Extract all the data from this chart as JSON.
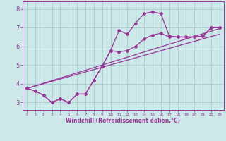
{
  "xlabel": "Windchill (Refroidissement éolien,°C)",
  "background_color": "#cce8e8",
  "grid_color": "#aacccc",
  "line_color": "#993399",
  "xlim": [
    -0.5,
    23.5
  ],
  "ylim": [
    2.6,
    8.4
  ],
  "xticks": [
    0,
    1,
    2,
    3,
    4,
    5,
    6,
    7,
    8,
    9,
    10,
    11,
    12,
    13,
    14,
    15,
    16,
    17,
    18,
    19,
    20,
    21,
    22,
    23
  ],
  "yticks": [
    3,
    4,
    5,
    6,
    7,
    8
  ],
  "series1_x": [
    0,
    1,
    2,
    3,
    4,
    5,
    6,
    7,
    8,
    9,
    10,
    11,
    12,
    13,
    14,
    15,
    16,
    17,
    18,
    19,
    20,
    21,
    22,
    23
  ],
  "series1_y": [
    3.75,
    3.62,
    3.38,
    3.0,
    3.2,
    3.0,
    3.45,
    3.45,
    4.2,
    4.95,
    5.78,
    6.85,
    6.65,
    7.25,
    7.75,
    7.85,
    7.75,
    6.55,
    6.5,
    6.5,
    6.5,
    6.55,
    7.0,
    7.0
  ],
  "series2_x": [
    0,
    1,
    2,
    3,
    4,
    5,
    6,
    7,
    8,
    9,
    10,
    11,
    12,
    13,
    14,
    15,
    16,
    17,
    18,
    19,
    20,
    21,
    22,
    23
  ],
  "series2_y": [
    3.75,
    3.62,
    3.38,
    3.0,
    3.2,
    3.0,
    3.45,
    3.45,
    4.2,
    4.95,
    5.78,
    5.7,
    5.78,
    6.0,
    6.4,
    6.6,
    6.7,
    6.5,
    6.5,
    6.5,
    6.5,
    6.55,
    7.0,
    7.0
  ],
  "series3_x": [
    0,
    23
  ],
  "series3_y": [
    3.75,
    6.95
  ],
  "series4_x": [
    0,
    23
  ],
  "series4_y": [
    3.75,
    6.65
  ]
}
